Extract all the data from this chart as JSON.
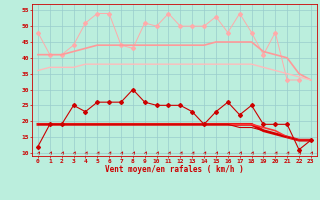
{
  "background_color": "#bbeebb",
  "grid_color": "#99cccc",
  "xlabel": "Vent moyen/en rafales ( km/h )",
  "x": [
    0,
    1,
    2,
    3,
    4,
    5,
    6,
    7,
    8,
    9,
    10,
    11,
    12,
    13,
    14,
    15,
    16,
    17,
    18,
    19,
    20,
    21,
    22,
    23
  ],
  "ylim": [
    9,
    57
  ],
  "yticks": [
    10,
    15,
    20,
    25,
    30,
    35,
    40,
    45,
    50,
    55
  ],
  "line1_y": [
    48,
    41,
    41,
    44,
    51,
    54,
    54,
    44,
    43,
    51,
    50,
    54,
    50,
    50,
    50,
    53,
    48,
    54,
    48,
    41,
    48,
    33,
    33,
    null
  ],
  "line1_color": "#ffaaaa",
  "line2_y": [
    41,
    41,
    41,
    42,
    43,
    44,
    44,
    44,
    44,
    44,
    44,
    44,
    44,
    44,
    44,
    45,
    45,
    45,
    45,
    42,
    41,
    40,
    35,
    33
  ],
  "line2_color": "#ff9999",
  "line3_y": [
    36,
    37,
    37,
    37,
    38,
    38,
    38,
    38,
    38,
    38,
    38,
    38,
    38,
    38,
    38,
    38,
    38,
    38,
    38,
    37,
    36,
    35,
    34,
    33
  ],
  "line3_color": "#ffbbbb",
  "line4_y": [
    12,
    19,
    19,
    25,
    23,
    26,
    26,
    26,
    30,
    26,
    25,
    25,
    25,
    23,
    19,
    23,
    26,
    22,
    25,
    19,
    19,
    19,
    11,
    14
  ],
  "line4_color": "#cc0000",
  "line5_y": [
    19,
    19,
    19,
    19,
    19,
    19,
    19,
    19,
    19,
    19,
    19,
    19,
    19,
    19,
    19,
    19,
    19,
    19,
    19,
    17,
    16,
    15,
    14,
    14
  ],
  "line5_color": "#dd0000",
  "line6_y": [
    19,
    19,
    19,
    19,
    19,
    19,
    19,
    19,
    19,
    19,
    19,
    19,
    19,
    19,
    19,
    19,
    19,
    19,
    19,
    18,
    17,
    15,
    14,
    14
  ],
  "line6_color": "#ff3333",
  "line7_y": [
    19,
    19,
    19,
    19,
    19,
    19,
    19,
    19,
    19,
    19,
    19,
    19,
    19,
    19,
    19,
    19,
    19,
    18,
    18,
    17,
    16,
    15,
    14,
    14
  ],
  "line7_color": "#cc0000",
  "tick_color": "#cc0000",
  "label_color": "#cc0000"
}
